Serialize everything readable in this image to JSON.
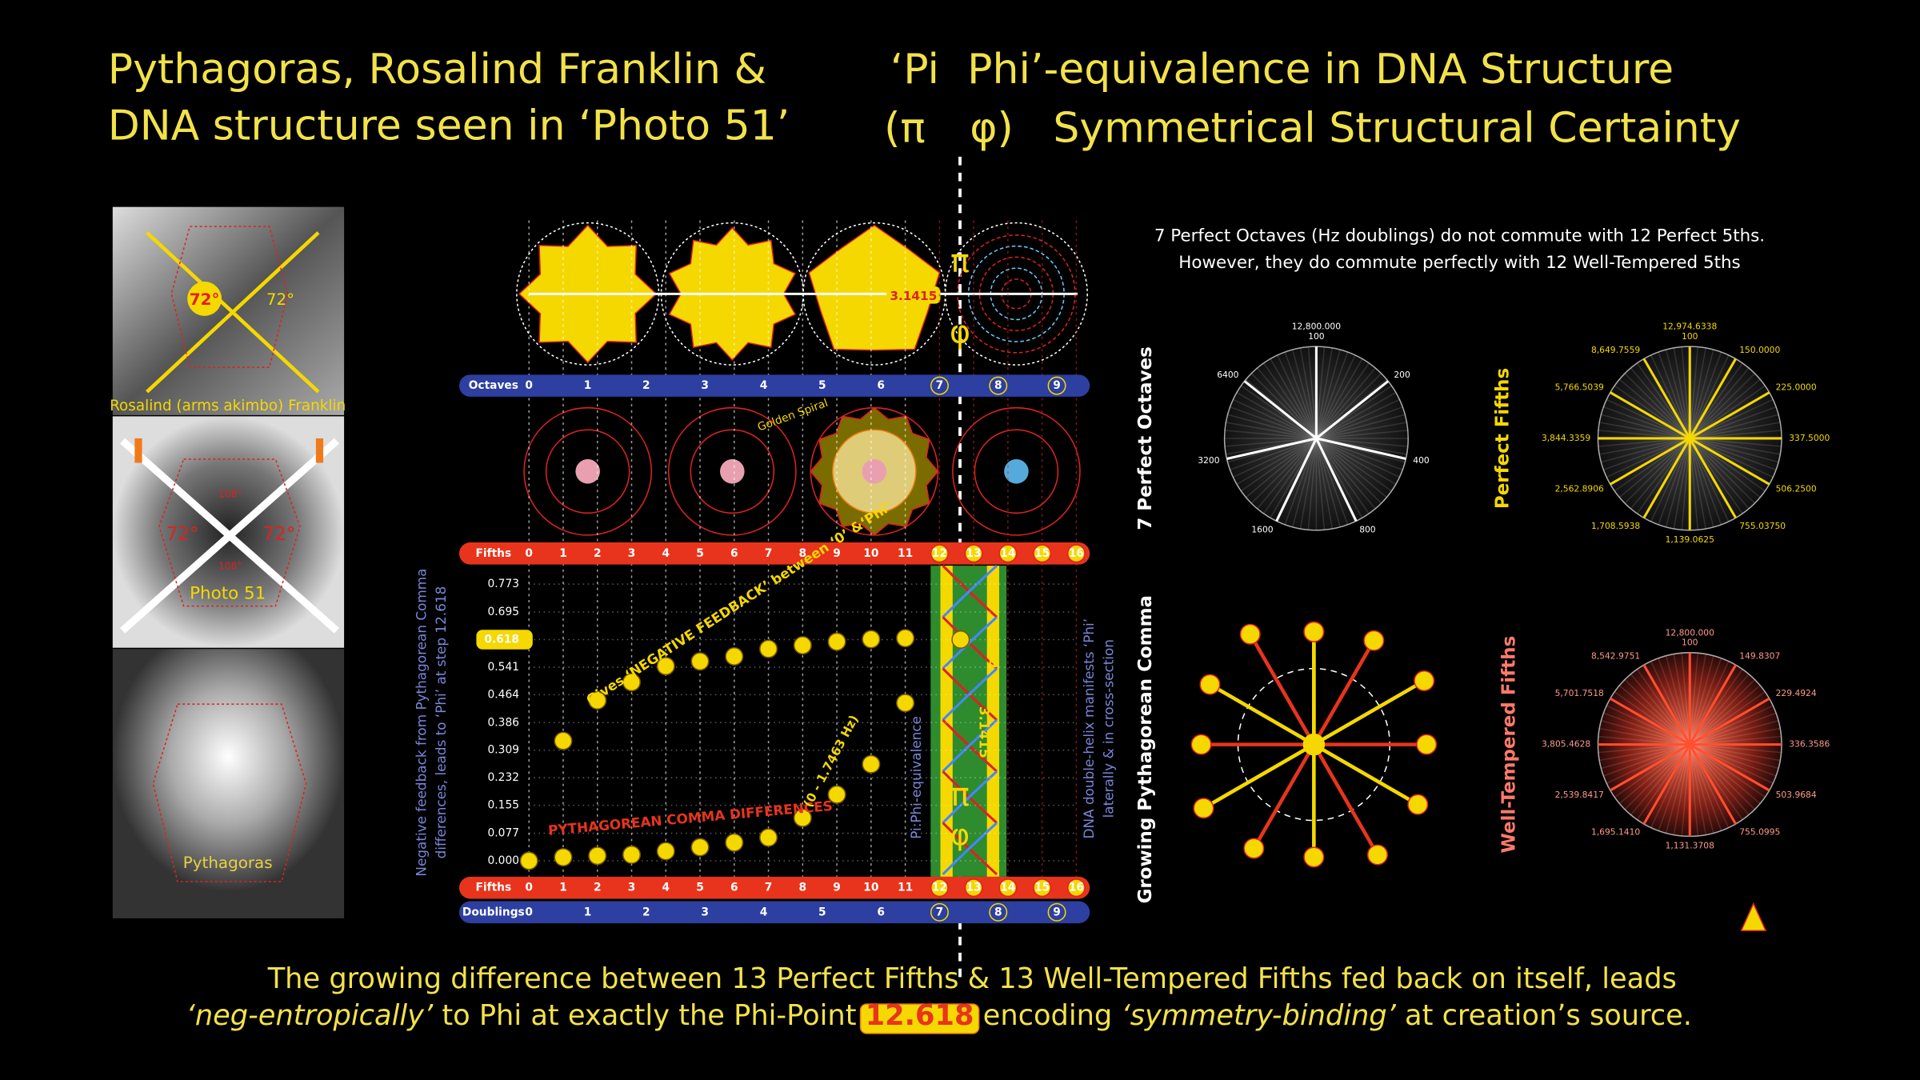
{
  "header": {
    "left_lines": [
      "Pythagoras, Rosalind Franklin &",
      "DNA structure seen in ‘Photo 51’"
    ],
    "right_line1": [
      "‘Pi",
      "Phi’-equivalence in DNA Structure"
    ],
    "right_line2": [
      "(π",
      "φ)",
      "Symmetrical Structural Certainty"
    ]
  },
  "photos": {
    "franklin_caption": "Rosalind (arms akimbo) Franklin",
    "photo51_caption": "Photo 51",
    "pythagoras_caption": "Pythagoras",
    "angle_a": "72°",
    "angle_b": "108°"
  },
  "diagrams": {
    "value_tag": "3.1415",
    "spiral_label": "Golden Spiral",
    "pi": "π",
    "phi": "φ"
  },
  "chart_data": {
    "type": "scatter",
    "y_label_lines": [
      "Negative feedback from Pythagorean Comma",
      "differences, leads to ‘Phi’ at step 12.618"
    ],
    "right_label_lines": [
      "DNA double-helix manifests ‘Phi’",
      "laterally & in cross-section"
    ],
    "equivalence_label": "Pi:Phi-equivalence",
    "comma_range": "(0 - 1.7463 Hz)",
    "helix_labels": [
      "0.618",
      "3.1415"
    ],
    "x_axis_label": "Fifths",
    "xlim": [
      0,
      16
    ],
    "xticks": [
      0,
      1,
      2,
      3,
      4,
      5,
      6,
      7,
      8,
      9,
      10,
      11,
      12,
      13,
      14,
      15,
      16
    ],
    "octaves": {
      "label": "Octaves",
      "ticks": [
        0,
        1,
        2,
        3,
        4,
        5,
        6,
        7,
        8,
        9
      ]
    },
    "doublings": {
      "label": "Doublings",
      "ticks": [
        0,
        1,
        2,
        3,
        4,
        5,
        6,
        7,
        8,
        9
      ]
    },
    "ylim": [
      0,
      0.773
    ],
    "yticks": [
      {
        "value": 0,
        "label": "0.000"
      },
      0.077,
      0.155,
      0.232,
      0.309,
      0.386,
      0.464,
      0.541,
      0.618,
      0.695,
      0.773
    ],
    "series": [
      {
        "name": "Gives ‘NEGATIVE FEEDBACK’ between ‘0’ &‘Phi’",
        "color": "#f5d800",
        "x": [
          1,
          2,
          3,
          4,
          5,
          6,
          7,
          8,
          9,
          10,
          11,
          12.618
        ],
        "values": [
          0.335,
          0.448,
          0.499,
          0.544,
          0.557,
          0.571,
          0.592,
          0.602,
          0.612,
          0.619,
          0.622,
          0.618
        ]
      },
      {
        "name": "PYTHAGOREAN COMMA DIFFERENCES",
        "color": "#f5d800",
        "x": [
          0,
          1,
          2,
          3,
          4,
          5,
          6,
          7,
          8,
          9,
          10,
          11
        ],
        "values": [
          0,
          0.01,
          0.014,
          0.017,
          0.027,
          0.038,
          0.051,
          0.065,
          0.12,
          0.185,
          0.27,
          0.441
        ]
      }
    ]
  },
  "right_panel": {
    "note_lines": [
      "7 Perfect Octaves (Hz doublings) do not commute with 12 Perfect 5ths.",
      "However, they do commute perfectly with 12 Well-Tempered 5ths"
    ],
    "octaves_wheel": {
      "title": "7 Perfect Octaves",
      "top_lines": [
        "12,800.000",
        "100"
      ],
      "labels": [
        "200",
        "400",
        "800",
        "1600",
        "3200",
        "6400"
      ]
    },
    "fifths_wheel": {
      "title": "Perfect Fifths",
      "top_lines": [
        "12,974.6338",
        "100"
      ],
      "labels": [
        "150.0000",
        "225.0000",
        "337.5000",
        "506.2500",
        "755.03750",
        "1,139.0625",
        "1,708.5938",
        "2,562.8906",
        "3,844.3359",
        "5,766.5039",
        "8,649.7559"
      ]
    },
    "comma_wheel": {
      "title": "Growing Pythagorean Comma"
    },
    "tempered_wheel": {
      "title": "Well-Tempered Fifths",
      "top_lines": [
        "12,800.000",
        "100"
      ],
      "labels": [
        "149.8307",
        "229.4924",
        "336.3586",
        "503.9684",
        "755.0995",
        "1,131.3708",
        "1,695.1410",
        "2,539.8417",
        "3,805.4628",
        "5,701.7518",
        "8,542.9751"
      ]
    }
  },
  "footer": {
    "line1": "The growing difference between 13 Perfect Fifths & 13 Well-Tempered Fifths fed back on itself, leads",
    "line2": [
      "‘neg-entropically’",
      " to Phi at exactly the Phi-Point ",
      "12.618",
      " encoding ",
      "‘symmetry-binding’",
      " at creation’s source."
    ]
  }
}
